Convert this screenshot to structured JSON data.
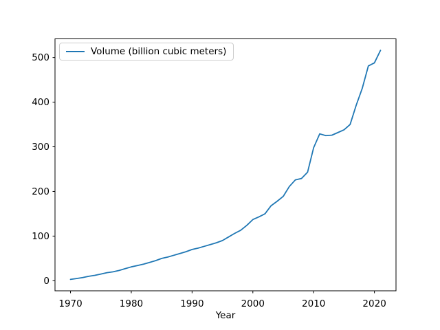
{
  "figure": {
    "background": "#ffffff"
  },
  "chart_data": {
    "type": "line",
    "title": "",
    "xlabel": "Year",
    "ylabel": "",
    "grid": false,
    "legend": {
      "position": "upper-left",
      "entries": [
        "Volume (billion cubic meters)"
      ]
    },
    "xticks": [
      1970,
      1980,
      1990,
      2000,
      2010,
      2020
    ],
    "yticks": [
      0,
      100,
      200,
      300,
      400,
      500
    ],
    "xlim": [
      1967.45,
      2023.55
    ],
    "ylim": [
      -22.6,
      541.8
    ],
    "x": [
      1970,
      1971,
      1972,
      1973,
      1974,
      1975,
      1976,
      1977,
      1978,
      1979,
      1980,
      1981,
      1982,
      1983,
      1984,
      1985,
      1986,
      1987,
      1988,
      1989,
      1990,
      1991,
      1992,
      1993,
      1994,
      1995,
      1996,
      1997,
      1998,
      1999,
      2000,
      2001,
      2002,
      2003,
      2004,
      2005,
      2006,
      2007,
      2008,
      2009,
      2010,
      2011,
      2012,
      2013,
      2014,
      2015,
      2016,
      2017,
      2018,
      2019,
      2020,
      2021
    ],
    "series": [
      {
        "name": "Volume (billion cubic meters)",
        "color": "#1f77b4",
        "values": [
          3,
          5,
          7,
          10,
          12,
          15,
          18,
          20,
          23,
          27,
          31,
          34,
          37,
          41,
          45,
          50,
          53,
          57,
          61,
          65,
          70,
          73,
          77,
          81,
          85,
          90,
          98,
          106,
          113,
          124,
          137,
          143,
          150,
          168,
          178,
          189,
          211,
          226,
          229,
          243,
          298,
          329,
          325,
          326,
          332,
          338,
          350,
          393,
          431,
          481,
          488,
          516
        ]
      }
    ],
    "axis_color": "#000000",
    "tick_label_color": "#000000"
  }
}
